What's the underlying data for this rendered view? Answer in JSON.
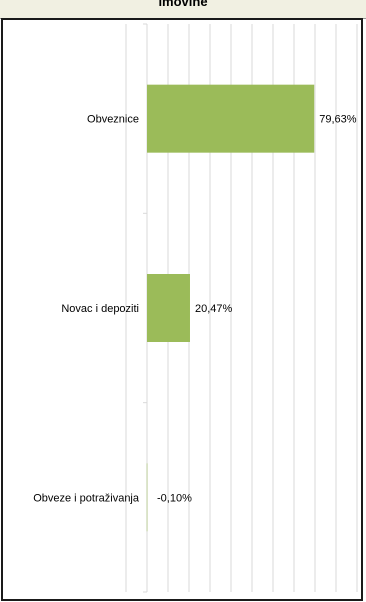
{
  "header": {
    "title": "imovine"
  },
  "chart_data": {
    "type": "bar",
    "orientation": "horizontal",
    "categories": [
      "Obveznice",
      "Novac i depoziti",
      "Obveze i potraživanja"
    ],
    "values": [
      79.63,
      20.47,
      -0.1
    ],
    "data_labels": [
      "79,63%",
      "20,47%",
      "-0,10%"
    ],
    "xlim": [
      0,
      100
    ],
    "grid": true,
    "bar_color": "#9bbb59",
    "grid_color": "#d9d9d9"
  }
}
